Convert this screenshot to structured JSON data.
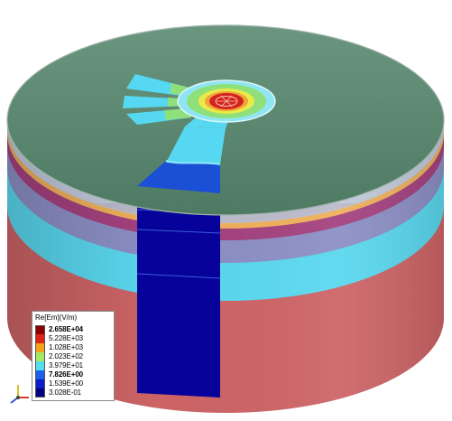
{
  "colors": {
    "top_face": "#55806a",
    "lower_body": "#cd6466",
    "lower_body_dark": "#a94b4d",
    "cyan_band": "#5ad8ef",
    "lavender_band": "#8c8fc5",
    "magenta_band": "#a4417f",
    "orange_band": "#efb05a",
    "cut_dark_blue": "#07039a",
    "cut_blue": "#1a4fd6",
    "cut_light_cyan": "#56d8f2",
    "ring_green": "#8ee07a",
    "ring_yellow": "#e9ea49",
    "core_red": "#d3231f"
  },
  "legend": {
    "title": "Re[Em](V/m)",
    "entries": [
      {
        "label": "2.658E+04",
        "color": "#8b0000",
        "bold": true
      },
      {
        "label": "5.228E+03",
        "color": "#e0231a",
        "bold": false
      },
      {
        "label": "1.028E+03",
        "color": "#f4a21a",
        "bold": false
      },
      {
        "label": "2.023E+02",
        "color": "#a6e866",
        "bold": false
      },
      {
        "label": "3.979E+01",
        "color": "#54dcf0",
        "bold": false
      },
      {
        "label": "7.826E+00",
        "color": "#1e5ee8",
        "bold": true
      },
      {
        "label": "1.539E+00",
        "color": "#0c1ec8",
        "bold": false
      },
      {
        "label": "3.028E-01",
        "color": "#000080",
        "bold": false
      }
    ]
  }
}
